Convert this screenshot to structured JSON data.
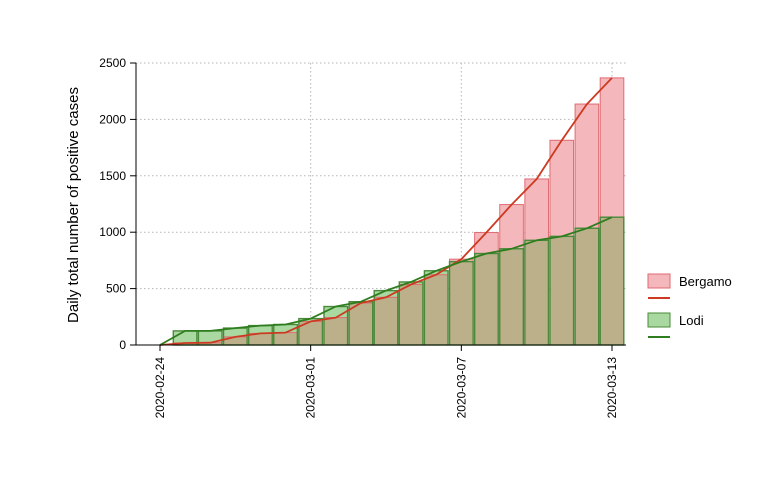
{
  "chart_data": {
    "type": "bar",
    "title": "",
    "xlabel": "",
    "ylabel": "Daily total number of positive cases",
    "x": [
      "2020-02-24",
      "2020-02-25",
      "2020-02-26",
      "2020-02-27",
      "2020-02-28",
      "2020-02-29",
      "2020-03-01",
      "2020-03-02",
      "2020-03-03",
      "2020-03-04",
      "2020-03-05",
      "2020-03-06",
      "2020-03-07",
      "2020-03-08",
      "2020-03-09",
      "2020-03-10",
      "2020-03-11",
      "2020-03-12",
      "2020-03-13"
    ],
    "x_ticks": [
      "2020-02-24",
      "2020-03-01",
      "2020-03-07",
      "2020-03-13"
    ],
    "ylim": [
      0,
      2500
    ],
    "y_ticks": [
      0,
      500,
      1000,
      1500,
      2000,
      2500
    ],
    "grid": true,
    "legend_position": "right",
    "series": [
      {
        "name": "Bergamo",
        "values": [
          0,
          18,
          20,
          72,
          103,
          110,
          209,
          243,
          372,
          423,
          537,
          623,
          761,
          997,
          1245,
          1472,
          1815,
          2136,
          2368
        ],
        "bar_fill": "#f4b8bc",
        "bar_edge": "#e06a72",
        "line_color": "#cc3a22"
      },
      {
        "name": "Lodi",
        "values": [
          0,
          125,
          125,
          150,
          172,
          182,
          234,
          341,
          384,
          482,
          559,
          658,
          739,
          811,
          853,
          928,
          963,
          1035,
          1133
        ],
        "bar_fill": "#a9d9a0",
        "bar_edge": "#4a8a3a",
        "line_color": "#2e7d1e"
      }
    ],
    "overlap_fill": "#bcb08a"
  }
}
